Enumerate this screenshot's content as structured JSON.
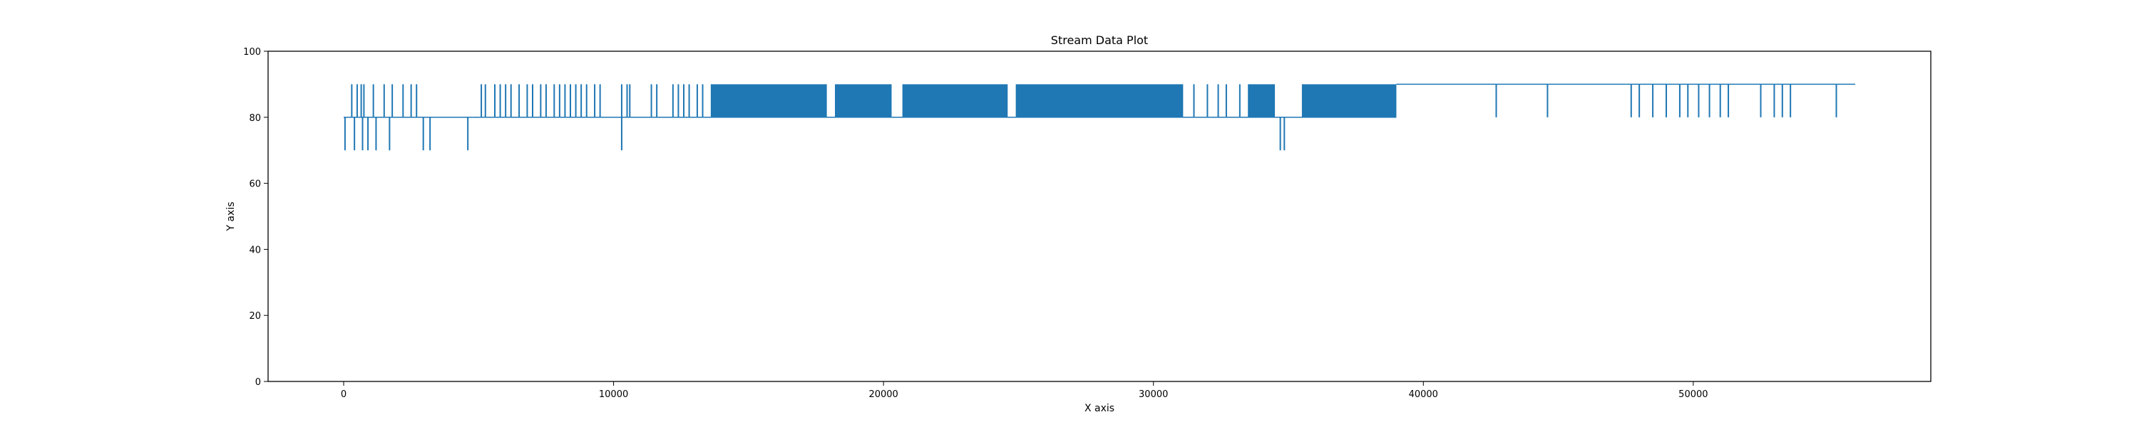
{
  "chart_data": {
    "type": "line",
    "title": "Stream Data Plot",
    "xlabel": "X axis",
    "ylabel": "Y axis",
    "xlim": [
      -2800,
      58800
    ],
    "ylim": [
      0,
      100
    ],
    "x_ticks": [
      0,
      10000,
      20000,
      30000,
      40000,
      50000
    ],
    "y_ticks": [
      0,
      20,
      40,
      60,
      80,
      100
    ],
    "grid": false,
    "legend": "none",
    "series": [
      {
        "color": "#1f77b4",
        "x_range": [
          0,
          56000
        ],
        "baseline_levels": [
          {
            "x_from": 0,
            "x_to": 300,
            "y": 80
          },
          {
            "x_from": 300,
            "x_to": 4800,
            "y": 80
          },
          {
            "x_from": 4800,
            "x_to": 15500,
            "y": 80
          },
          {
            "x_from": 15500,
            "x_to": 39000,
            "y": 80
          },
          {
            "x_from": 39000,
            "x_to": 47500,
            "y": 90
          },
          {
            "x_from": 47500,
            "x_to": 56000,
            "y": 90
          }
        ],
        "dense_bands": [
          {
            "x_from": 13600,
            "x_to": 17900,
            "y_low": 80,
            "y_high": 90
          },
          {
            "x_from": 18200,
            "x_to": 20300,
            "y_low": 80,
            "y_high": 90
          },
          {
            "x_from": 20700,
            "x_to": 24600,
            "y_low": 80,
            "y_high": 90
          },
          {
            "x_from": 24900,
            "x_to": 31100,
            "y_low": 80,
            "y_high": 90
          },
          {
            "x_from": 33500,
            "x_to": 34500,
            "y_low": 80,
            "y_high": 90
          },
          {
            "x_from": 35500,
            "x_to": 39000,
            "y_low": 80,
            "y_high": 90
          }
        ],
        "spikes_to_90": [
          300,
          500,
          650,
          750,
          1100,
          1500,
          1800,
          2200,
          2500,
          2700,
          5100,
          5250,
          5600,
          5800,
          6000,
          6200,
          6500,
          6800,
          7000,
          7300,
          7500,
          7800,
          8000,
          8200,
          8400,
          8600,
          8800,
          9000,
          9300,
          9500,
          10300,
          10500,
          10600,
          11400,
          11600,
          12200,
          12400,
          12600,
          12800,
          13100,
          13300,
          31500,
          32000,
          32400,
          32700,
          33200,
          39500,
          40000,
          40300,
          40600,
          41100,
          41500,
          42000,
          42200,
          42500,
          42900,
          43400,
          44000,
          44400,
          44800,
          45300,
          45700,
          46200,
          46600,
          47000,
          47400
        ],
        "spikes_to_80": [
          42700,
          44600,
          47700,
          48000,
          48500,
          49000,
          49500,
          49800,
          50200,
          50600,
          51000,
          51300,
          52500,
          53000,
          53300,
          53600,
          55300
        ],
        "spikes_to_70": [
          50,
          400,
          700,
          900,
          1200,
          1700,
          2950,
          3200,
          4600,
          10300,
          34700,
          34850
        ]
      }
    ]
  }
}
